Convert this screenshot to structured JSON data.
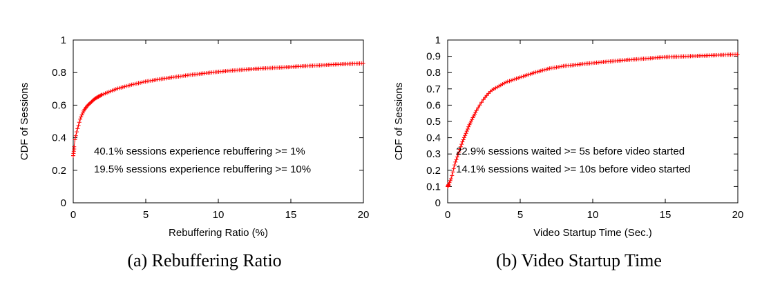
{
  "chart_data": [
    {
      "type": "scatter",
      "caption": "(a) Rebuffering Ratio",
      "xlabel": "Rebuffering Ratio (%)",
      "ylabel": "CDF of Sessions",
      "xlim": [
        0,
        20
      ],
      "ylim": [
        0,
        1
      ],
      "xticks": [
        0,
        5,
        10,
        15,
        20
      ],
      "yticks": [
        0,
        0.2,
        0.4,
        0.6,
        0.8,
        1
      ],
      "ytick_labels": [
        "0",
        "0.2",
        "0.4",
        "0.6",
        "0.8",
        "1"
      ],
      "grid": false,
      "marker": "+",
      "marker_color": "#ff0000",
      "annotations": [
        "40.1% sessions experience rebuffering >= 1%",
        "19.5% sessions experience rebuffering >= 10%"
      ],
      "series": [
        {
          "x": [
            0,
            0.1,
            0.25,
            0.5,
            0.75,
            1,
            1.5,
            2,
            3,
            4,
            5,
            6,
            8,
            10,
            12,
            15,
            18,
            20
          ],
          "y": [
            0.29,
            0.38,
            0.44,
            0.52,
            0.57,
            0.599,
            0.64,
            0.665,
            0.7,
            0.725,
            0.745,
            0.76,
            0.785,
            0.805,
            0.82,
            0.835,
            0.85,
            0.857
          ]
        }
      ]
    },
    {
      "type": "scatter",
      "caption": "(b) Video Startup Time",
      "xlabel": "Video Startup Time (Sec.)",
      "ylabel": "CDF of Sessions",
      "xlim": [
        0,
        20
      ],
      "ylim": [
        0,
        1
      ],
      "xticks": [
        0,
        5,
        10,
        15,
        20
      ],
      "yticks": [
        0,
        0.1,
        0.2,
        0.3,
        0.4,
        0.5,
        0.6,
        0.7,
        0.8,
        0.9,
        1
      ],
      "ytick_labels": [
        "0",
        "0.1",
        "0.2",
        "0.3",
        "0.4",
        "0.5",
        "0.6",
        "0.7",
        "0.8",
        "0.9",
        "1"
      ],
      "grid": false,
      "marker": "+",
      "marker_color": "#ff0000",
      "annotations": [
        "22.9% sessions waited >= 5s before video started",
        "14.1% sessions waited >= 10s before video started"
      ],
      "series": [
        {
          "x": [
            0,
            0.25,
            0.5,
            1,
            1.5,
            2,
            2.5,
            3,
            4,
            5,
            6,
            7,
            8,
            10,
            12,
            15,
            18,
            20
          ],
          "y": [
            0.1,
            0.15,
            0.24,
            0.37,
            0.48,
            0.57,
            0.64,
            0.69,
            0.74,
            0.771,
            0.8,
            0.825,
            0.84,
            0.859,
            0.875,
            0.895,
            0.905,
            0.912
          ]
        }
      ]
    }
  ]
}
